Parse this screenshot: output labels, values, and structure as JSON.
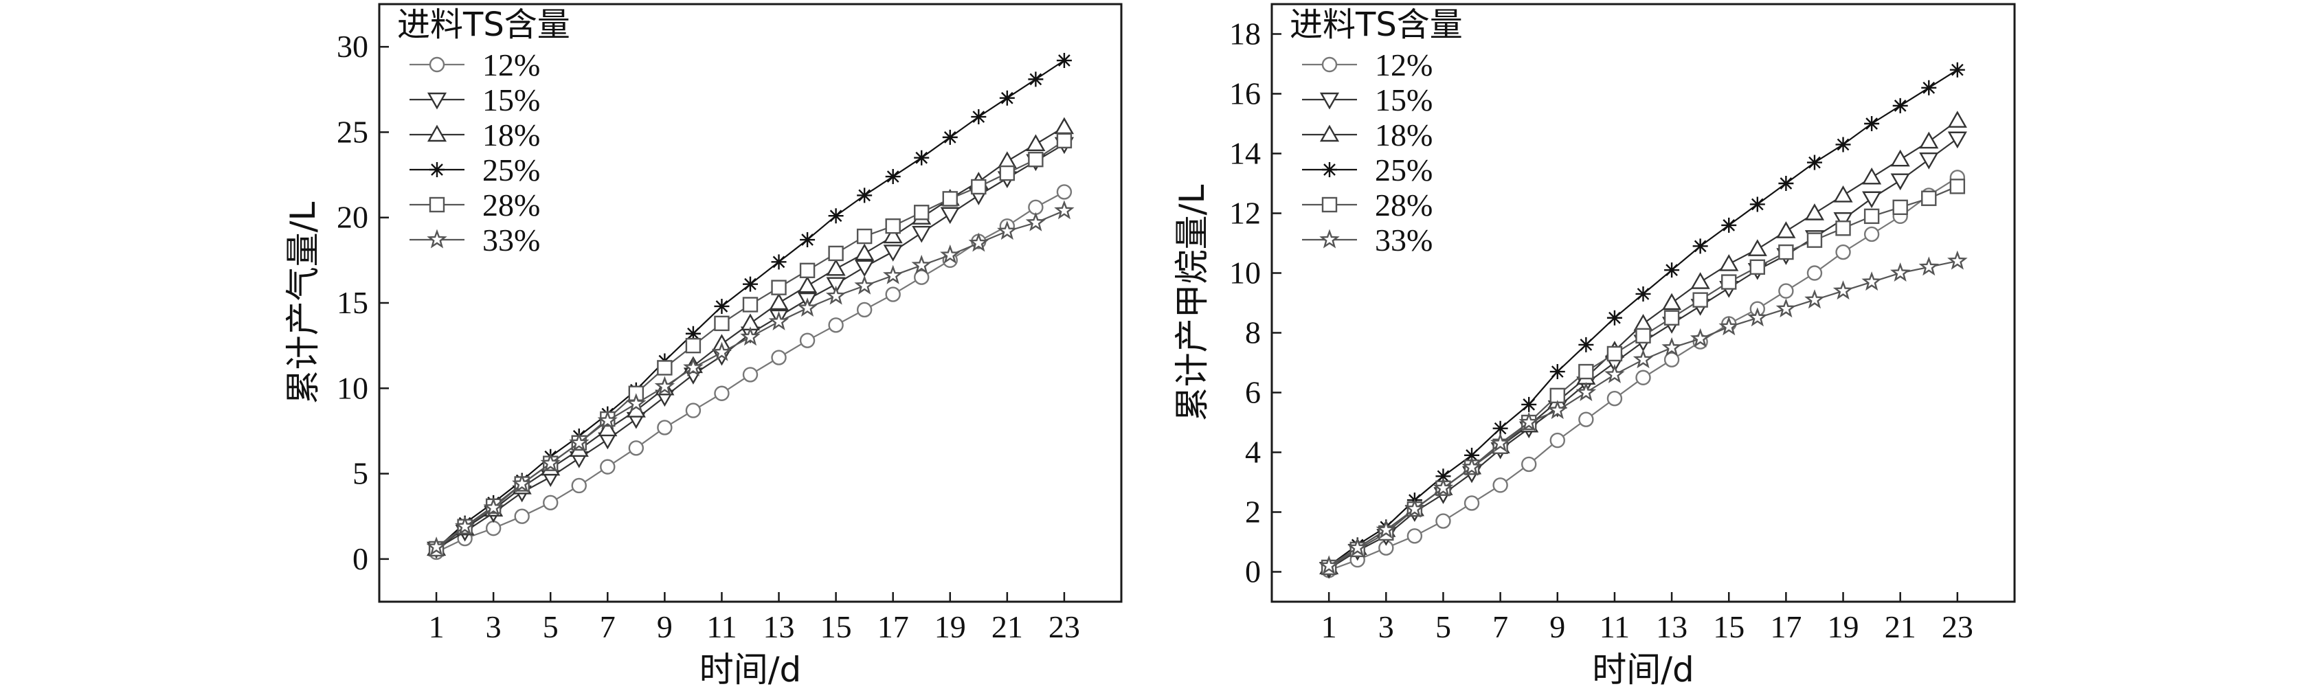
{
  "chart_data": [
    {
      "type": "line",
      "xlabel": "时间/d",
      "ylabel": "累计产气量/L",
      "xlim": [
        -1,
        25
      ],
      "ylim": [
        -2.5,
        32.5
      ],
      "xticks": [
        1,
        3,
        5,
        7,
        9,
        11,
        13,
        15,
        17,
        19,
        21,
        23
      ],
      "yticks": [
        0,
        5,
        10,
        15,
        20,
        25,
        30
      ],
      "legend_title": "进料TS含量",
      "legend_position": "top-left",
      "x": [
        1,
        2,
        3,
        4,
        5,
        6,
        7,
        8,
        9,
        10,
        11,
        12,
        13,
        14,
        15,
        16,
        17,
        18,
        19,
        20,
        21,
        22,
        23
      ],
      "series": [
        {
          "name": "12%",
          "marker": "circle",
          "color": "#777777",
          "values": [
            0.4,
            1.2,
            1.8,
            2.5,
            3.3,
            4.3,
            5.4,
            6.5,
            7.7,
            8.7,
            9.7,
            10.8,
            11.8,
            12.8,
            13.7,
            14.6,
            15.5,
            16.5,
            17.5,
            18.6,
            19.5,
            20.6,
            21.5
          ]
        },
        {
          "name": "15%",
          "marker": "triangle-down",
          "color": "#333333",
          "values": [
            0.6,
            1.6,
            2.7,
            3.9,
            4.8,
            5.9,
            7.0,
            8.2,
            9.5,
            10.8,
            11.9,
            13.2,
            14.2,
            15.2,
            16.1,
            17.1,
            18.0,
            19.1,
            20.2,
            21.3,
            22.3,
            23.3,
            24.3
          ]
        },
        {
          "name": "18%",
          "marker": "triangle-up",
          "color": "#333333",
          "values": [
            0.6,
            1.8,
            2.9,
            4.2,
            5.3,
            6.4,
            7.6,
            8.7,
            10.0,
            11.3,
            12.6,
            13.8,
            15.0,
            16.0,
            17.0,
            17.9,
            18.9,
            20.0,
            21.1,
            22.1,
            23.3,
            24.3,
            25.3
          ]
        },
        {
          "name": "25%",
          "marker": "asterisk",
          "color": "#111111",
          "values": [
            0.6,
            2.1,
            3.3,
            4.6,
            6.0,
            7.2,
            8.5,
            9.9,
            11.6,
            13.2,
            14.8,
            16.1,
            17.4,
            18.7,
            20.1,
            21.3,
            22.4,
            23.5,
            24.7,
            25.9,
            27.0,
            28.1,
            29.2
          ]
        },
        {
          "name": "28%",
          "marker": "square",
          "color": "#555555",
          "values": [
            0.6,
            1.9,
            3.1,
            4.4,
            5.6,
            6.8,
            8.2,
            9.7,
            11.2,
            12.5,
            13.8,
            14.9,
            15.9,
            16.9,
            17.9,
            18.9,
            19.5,
            20.3,
            21.1,
            21.8,
            22.6,
            23.4,
            24.5
          ]
        },
        {
          "name": "33%",
          "marker": "star",
          "color": "#555555",
          "values": [
            0.7,
            1.9,
            3.0,
            4.4,
            5.6,
            6.8,
            8.1,
            9.1,
            10.1,
            11.2,
            12.1,
            13.0,
            13.9,
            14.7,
            15.4,
            16.0,
            16.6,
            17.2,
            17.8,
            18.5,
            19.2,
            19.7,
            20.4
          ]
        }
      ]
    },
    {
      "type": "line",
      "xlabel": "时间/d",
      "ylabel": "累计产甲烷量/L",
      "xlim": [
        -1,
        25
      ],
      "ylim": [
        -1,
        19
      ],
      "xticks": [
        1,
        3,
        5,
        7,
        9,
        11,
        13,
        15,
        17,
        19,
        21,
        23
      ],
      "yticks": [
        0,
        2,
        4,
        6,
        8,
        10,
        12,
        14,
        16,
        18
      ],
      "legend_title": "进料TS含量",
      "legend_position": "top-left",
      "x": [
        1,
        2,
        3,
        4,
        5,
        6,
        7,
        8,
        9,
        10,
        11,
        12,
        13,
        14,
        15,
        16,
        17,
        18,
        19,
        20,
        21,
        22,
        23
      ],
      "series": [
        {
          "name": "12%",
          "marker": "circle",
          "color": "#777777",
          "values": [
            0.05,
            0.4,
            0.8,
            1.2,
            1.7,
            2.3,
            2.9,
            3.6,
            4.4,
            5.1,
            5.8,
            6.5,
            7.1,
            7.7,
            8.3,
            8.8,
            9.4,
            10.0,
            10.7,
            11.3,
            11.9,
            12.6,
            13.2
          ]
        },
        {
          "name": "15%",
          "marker": "triangle-down",
          "color": "#333333",
          "values": [
            0.1,
            0.7,
            1.2,
            2.0,
            2.6,
            3.3,
            4.1,
            4.8,
            5.5,
            6.3,
            7.0,
            7.7,
            8.3,
            8.9,
            9.5,
            10.1,
            10.6,
            11.2,
            11.8,
            12.5,
            13.1,
            13.8,
            14.5
          ]
        },
        {
          "name": "18%",
          "marker": "triangle-up",
          "color": "#333333",
          "values": [
            0.15,
            0.8,
            1.4,
            2.1,
            2.8,
            3.5,
            4.2,
            4.9,
            5.7,
            6.5,
            7.4,
            8.3,
            9.0,
            9.7,
            10.3,
            10.8,
            11.4,
            12.0,
            12.6,
            13.2,
            13.8,
            14.4,
            15.1
          ]
        },
        {
          "name": "25%",
          "marker": "asterisk",
          "color": "#111111",
          "values": [
            0.2,
            0.9,
            1.5,
            2.4,
            3.2,
            3.9,
            4.8,
            5.6,
            6.7,
            7.6,
            8.5,
            9.3,
            10.1,
            10.9,
            11.6,
            12.3,
            13.0,
            13.7,
            14.3,
            15.0,
            15.6,
            16.2,
            16.8
          ]
        },
        {
          "name": "28%",
          "marker": "square",
          "color": "#555555",
          "values": [
            0.15,
            0.75,
            1.3,
            2.1,
            2.8,
            3.5,
            4.2,
            5.0,
            5.9,
            6.7,
            7.3,
            7.9,
            8.5,
            9.1,
            9.7,
            10.2,
            10.7,
            11.1,
            11.5,
            11.9,
            12.2,
            12.5,
            12.9
          ]
        },
        {
          "name": "33%",
          "marker": "star",
          "color": "#555555",
          "values": [
            0.2,
            0.8,
            1.4,
            2.1,
            2.8,
            3.5,
            4.3,
            5.0,
            5.4,
            6.0,
            6.6,
            7.1,
            7.5,
            7.8,
            8.2,
            8.5,
            8.8,
            9.1,
            9.4,
            9.7,
            10.0,
            10.2,
            10.4
          ]
        }
      ]
    }
  ]
}
